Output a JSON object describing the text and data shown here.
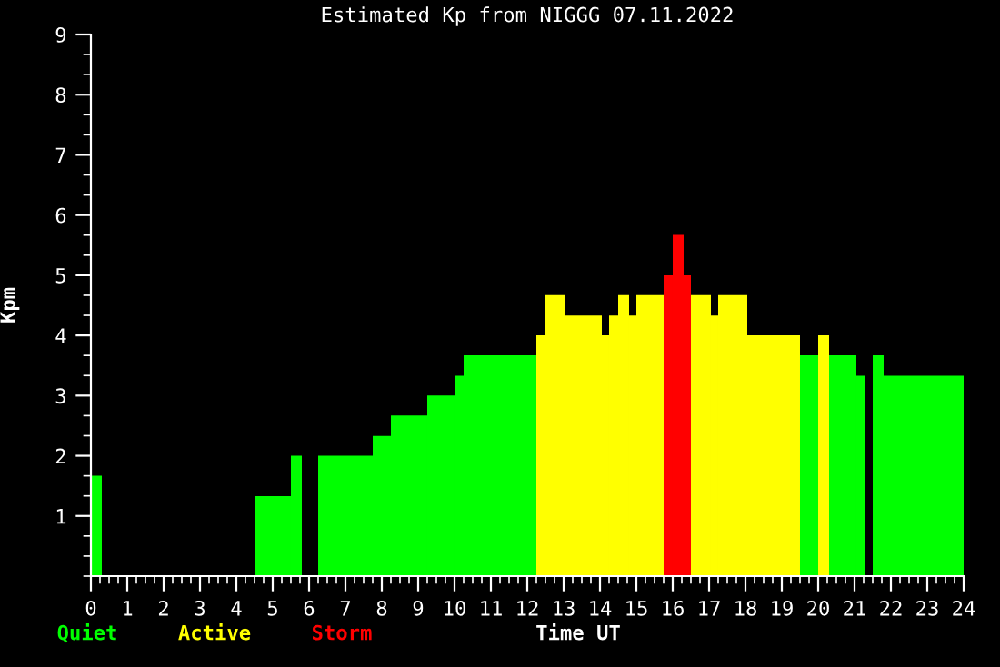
{
  "chart_data": {
    "type": "histogram",
    "title": "Estimated Kp from NIGGG 07.11.2022",
    "xlabel": "Time UT",
    "ylabel": "Kpm",
    "bins": [
      0,
      0.3,
      4.5,
      5.5,
      5.8,
      6.25,
      7.75,
      8.25,
      9.25,
      10.0,
      10.25,
      12.25,
      12.5,
      13.05,
      14.05,
      14.25,
      14.5,
      14.8,
      15.0,
      15.75,
      16.0,
      16.3,
      16.5,
      17.05,
      17.25,
      18.05,
      19.5,
      20.0,
      20.3,
      21.05,
      21.3,
      21.5,
      21.8,
      24.0
    ],
    "series": [
      {
        "name": "Quiet",
        "color": "#00ff00",
        "values": [
          1.67,
          null,
          1.33,
          2.0,
          null,
          2.0,
          2.33,
          2.67,
          3.0,
          3.33,
          3.67,
          null,
          null,
          null,
          null,
          null,
          null,
          null,
          null,
          null,
          null,
          null,
          null,
          null,
          null,
          null,
          3.67,
          null,
          3.67,
          3.33,
          null,
          3.67,
          3.33
        ]
      },
      {
        "name": "Active",
        "color": "#ffff00",
        "values": [
          null,
          null,
          null,
          null,
          null,
          null,
          null,
          null,
          null,
          null,
          null,
          4.0,
          4.67,
          4.33,
          4.0,
          4.33,
          4.67,
          4.33,
          4.67,
          null,
          null,
          null,
          4.67,
          4.33,
          4.67,
          4.0,
          null,
          4.0,
          null,
          null,
          null,
          null,
          null
        ]
      },
      {
        "name": "Storm",
        "color": "#ff0000",
        "values": [
          null,
          null,
          null,
          null,
          null,
          null,
          null,
          null,
          null,
          null,
          null,
          null,
          null,
          null,
          null,
          null,
          null,
          null,
          null,
          5.0,
          5.67,
          5.0,
          null,
          null,
          null,
          null,
          null,
          null,
          null,
          null,
          null,
          null,
          null
        ]
      }
    ],
    "xlim": [
      0,
      24
    ],
    "xticks": [
      0,
      1,
      2,
      3,
      4,
      5,
      6,
      7,
      8,
      9,
      10,
      11,
      12,
      13,
      14,
      15,
      16,
      17,
      18,
      19,
      20,
      21,
      22,
      23,
      24
    ],
    "ylim": [
      0,
      9
    ],
    "yticks": [
      1,
      2,
      3,
      4,
      5,
      6,
      7,
      8,
      9
    ],
    "grid": false,
    "legend": "bottom"
  }
}
